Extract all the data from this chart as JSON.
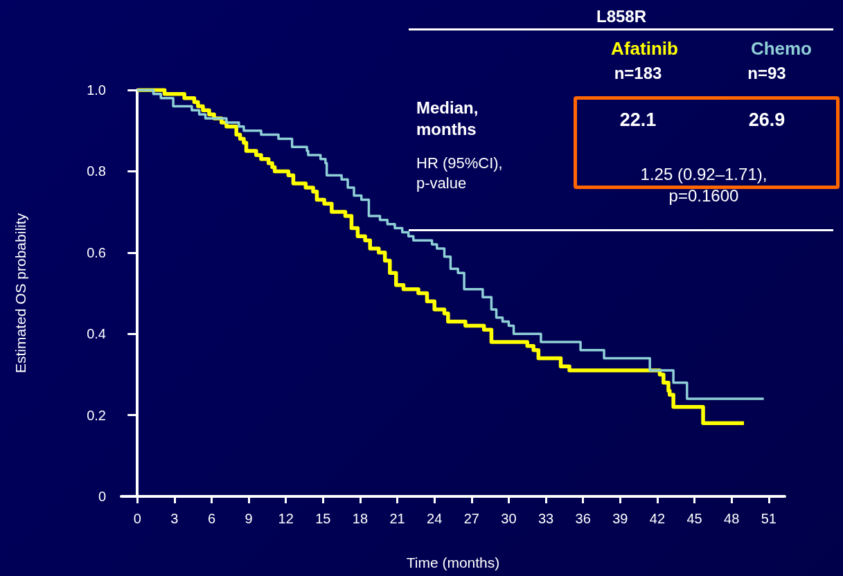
{
  "chart_data": {
    "type": "step",
    "title": "L858R",
    "xlabel": "Time (months)",
    "ylabel": "Estimated OS probability",
    "xlim": [
      -1.3,
      52.3
    ],
    "xticks": [
      0,
      3,
      6,
      9,
      12,
      15,
      18,
      21,
      24,
      27,
      30,
      33,
      36,
      39,
      42,
      45,
      48,
      51
    ],
    "ylim": [
      0,
      1
    ],
    "yticks": [
      0,
      0.2,
      0.4,
      0.6,
      0.8,
      {
        "value": 1,
        "label": "1.0"
      }
    ],
    "grid": false,
    "legend": "top right",
    "marker": "none",
    "line_style": "solid",
    "series": [
      {
        "name": "Afatinib",
        "color": "#ffff00",
        "x": [
          0,
          2.2,
          3.8,
          4.3,
          4.6,
          4.9,
          5.3,
          5.8,
          6.2,
          6.8,
          7.2,
          8.0,
          8.3,
          8.6,
          8.8,
          9.6,
          10.0,
          10.6,
          10.9,
          11.1,
          12.2,
          12.6,
          13.6,
          14.2,
          14.5,
          15.1,
          15.7,
          16.8,
          17.3,
          17.8,
          18.4,
          18.8,
          19.5,
          20.0,
          20.4,
          20.9,
          21.5,
          22.7,
          23.4,
          24.0,
          24.8,
          25.1,
          26.5,
          28.0,
          28.6,
          31.5,
          32.0,
          32.4,
          33.4,
          34.2,
          34.9,
          36.5,
          42.2,
          42.5,
          42.9,
          43.0,
          43.3,
          45.7,
          49.0
        ],
        "values": [
          1.0,
          0.99,
          0.98,
          0.98,
          0.97,
          0.96,
          0.95,
          0.94,
          0.93,
          0.92,
          0.91,
          0.89,
          0.88,
          0.87,
          0.85,
          0.84,
          0.83,
          0.82,
          0.81,
          0.8,
          0.79,
          0.77,
          0.76,
          0.75,
          0.73,
          0.72,
          0.7,
          0.69,
          0.66,
          0.64,
          0.63,
          0.61,
          0.6,
          0.58,
          0.55,
          0.52,
          0.51,
          0.5,
          0.48,
          0.46,
          0.45,
          0.43,
          0.42,
          0.41,
          0.38,
          0.37,
          0.36,
          0.34,
          0.34,
          0.32,
          0.31,
          0.31,
          0.3,
          0.28,
          0.26,
          0.25,
          0.22,
          0.18,
          0.18
        ]
      },
      {
        "name": "Chemo",
        "color": "#8fcfd6",
        "x": [
          0,
          1.3,
          1.9,
          2.9,
          4.4,
          5.0,
          5.5,
          7.2,
          8.2,
          8.6,
          10.0,
          11.4,
          12.5,
          13.7,
          13.8,
          14.8,
          15.2,
          15.3,
          16.5,
          17.0,
          17.5,
          18.1,
          18.7,
          19.6,
          20.2,
          20.8,
          21.4,
          21.9,
          22.3,
          23.8,
          24.2,
          24.8,
          25.3,
          25.9,
          26.4,
          27.9,
          28.6,
          29.0,
          29.5,
          30.0,
          30.4,
          32.6,
          35.8,
          37.7,
          41.4,
          43.3,
          44.4,
          50.6
        ],
        "values": [
          1.0,
          0.99,
          0.98,
          0.96,
          0.95,
          0.94,
          0.93,
          0.92,
          0.91,
          0.9,
          0.89,
          0.88,
          0.86,
          0.85,
          0.84,
          0.83,
          0.82,
          0.79,
          0.78,
          0.76,
          0.74,
          0.73,
          0.69,
          0.68,
          0.67,
          0.66,
          0.65,
          0.64,
          0.63,
          0.62,
          0.61,
          0.59,
          0.56,
          0.55,
          0.51,
          0.49,
          0.46,
          0.44,
          0.43,
          0.42,
          0.4,
          0.38,
          0.36,
          0.34,
          0.31,
          0.28,
          0.24,
          0.24
        ]
      }
    ],
    "annotations": [
      "n=183",
      "n=93",
      "Median, months",
      "22.1",
      "26.9",
      "HR (95%CI), p-value",
      "1.25 (0.92–1.71), p=0.1600"
    ]
  }
}
